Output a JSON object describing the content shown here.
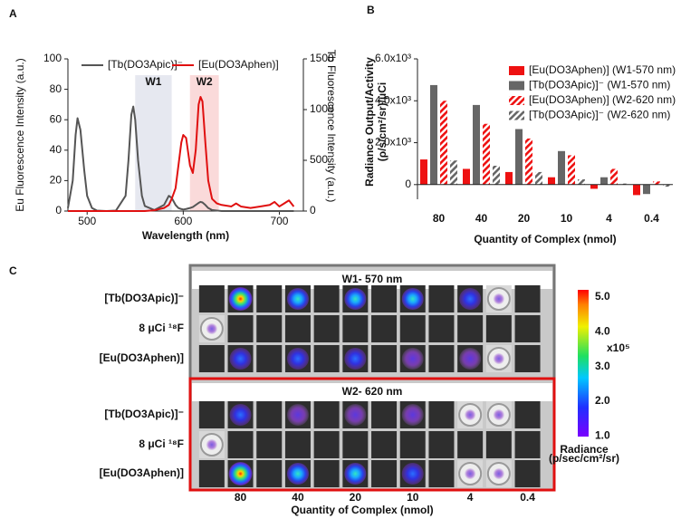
{
  "chart_data": [
    {
      "type": "line",
      "panel_label": "A",
      "xlabel": "Wavelength (nm)",
      "ylabel": "Eu Fluorescence Intensity (a.u.)",
      "y2label": "Tb Fluorescence Intensity (a.u.)",
      "x": [
        480,
        485,
        488,
        490,
        493,
        497,
        500,
        505,
        510,
        520,
        530,
        540,
        543,
        546,
        548,
        550,
        553,
        557,
        560,
        570,
        580,
        585,
        588,
        592,
        595,
        598,
        600,
        603,
        607,
        610,
        613,
        616,
        618,
        620,
        623,
        626,
        630,
        635,
        640,
        650,
        655,
        660,
        670,
        680,
        690,
        695,
        700,
        705,
        710,
        715
      ],
      "series": [
        {
          "name": "[Tb(DO3Apic)]⁻",
          "color": "#555555",
          "axis": "y2",
          "values": [
            30,
            300,
            750,
            915,
            800,
            400,
            150,
            30,
            5,
            0,
            5,
            150,
            500,
            950,
            1030,
            900,
            500,
            150,
            50,
            10,
            60,
            150,
            130,
            60,
            30,
            20,
            15,
            20,
            30,
            40,
            60,
            80,
            90,
            85,
            60,
            30,
            10,
            5,
            0,
            0,
            0,
            0,
            0,
            0,
            0,
            0,
            0,
            0,
            0,
            0
          ]
        },
        {
          "name": "[Eu(DO3Aphen)]",
          "color": "#e01010",
          "values": [
            0,
            0,
            0,
            0,
            0,
            0,
            0,
            0,
            0,
            0,
            0,
            0,
            0,
            0,
            0,
            0,
            0,
            0,
            0,
            0.5,
            2,
            4,
            8,
            15,
            30,
            45,
            50,
            48,
            30,
            25,
            40,
            70,
            75,
            72,
            45,
            20,
            8,
            5,
            4,
            3,
            5,
            3,
            2,
            3,
            4,
            6,
            3,
            5,
            7,
            3
          ]
        }
      ],
      "bands": [
        {
          "label": "W1",
          "range": [
            550,
            588
          ],
          "color": "#e6e8f0"
        },
        {
          "label": "W2",
          "range": [
            607,
            637
          ],
          "color": "#fadada"
        }
      ],
      "xlim": [
        480,
        725
      ],
      "xticks": [
        500,
        600,
        700
      ],
      "ylim": [
        0,
        100
      ],
      "yticks": [
        0,
        20,
        40,
        60,
        80,
        100
      ],
      "y2lim": [
        0,
        1500
      ],
      "y2ticks": [
        0,
        500,
        1000,
        1500
      ]
    },
    {
      "type": "bar",
      "panel_label": "B",
      "xlabel": "Quantity of Complex (nmol)",
      "ylabel": [
        "Radiance Output/Activity",
        "(ρ/s/cm²/sr)/μCi"
      ],
      "categories": [
        "80",
        "40",
        "20",
        "10",
        "4",
        "0.4"
      ],
      "series": [
        {
          "name": "[Eu(DO3Aphen)] (W1-570 nm)",
          "color": "#ee1111",
          "hatch": false,
          "values": [
            1200,
            750,
            600,
            350,
            -200,
            -500
          ]
        },
        {
          "name": "[Tb(DO3Apic)]⁻ (W1-570 nm)",
          "color": "#666666",
          "hatch": false,
          "values": [
            4750,
            3800,
            2650,
            1600,
            350,
            -450
          ]
        },
        {
          "name": "[Eu(DO3Aphen)] (W2-620 nm)",
          "color": "#ee1111",
          "hatch": true,
          "values": [
            4000,
            2900,
            2200,
            1400,
            750,
            150
          ]
        },
        {
          "name": "[Tb(DO3Apic)]⁻ (W2-620 nm)",
          "color": "#666666",
          "hatch": true,
          "values": [
            1150,
            900,
            600,
            250,
            50,
            -100
          ]
        }
      ],
      "ylim": [
        -700,
        6000
      ],
      "yticks": [
        0,
        {
          "value": 2000,
          "label": "2.0x10³"
        },
        {
          "value": 4000,
          "label": "4.0x10³"
        },
        {
          "value": 6000,
          "label": "6.0x10³"
        }
      ]
    }
  ],
  "panel_c": {
    "panel_label": "C",
    "panels": [
      {
        "title": "W1- 570 nm",
        "rows": [
          "[Tb(DO3Apic)]⁻",
          "8 μCi ¹⁸F",
          "[Eu(DO3Aphen)]"
        ]
      },
      {
        "title": "W2- 620 nm",
        "rows": [
          "[Tb(DO3Apic)]⁻",
          "8 μCi ¹⁸F",
          "[Eu(DO3Aphen)]"
        ]
      }
    ],
    "columns": [
      "80",
      "40",
      "20",
      "10",
      "4",
      "0.4"
    ],
    "xlabel": "Quantity of Complex (nmol)",
    "colorbar": {
      "ticks": [
        "5.0",
        "4.0",
        "3.0",
        "2.0",
        "1.0"
      ],
      "multiplier": "x10⁵",
      "label": [
        "Radiance",
        "(p/sec/cm²/sr)"
      ]
    }
  }
}
